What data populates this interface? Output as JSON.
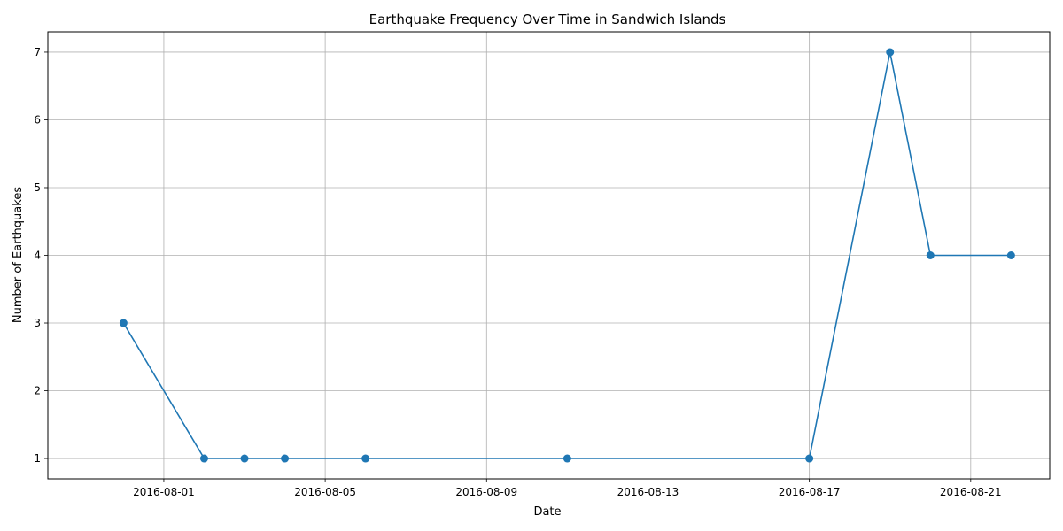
{
  "chart_data": {
    "type": "line",
    "title": "Earthquake Frequency Over Time in Sandwich Islands",
    "xlabel": "Date",
    "ylabel": "Number of Earthquakes",
    "x_ticks": [
      "2016-08-01",
      "2016-08-05",
      "2016-08-09",
      "2016-08-13",
      "2016-08-17",
      "2016-08-21"
    ],
    "y_ticks": [
      1,
      2,
      3,
      4,
      5,
      6,
      7
    ],
    "xlim": [
      "2016-07-29T03:00",
      "2016-08-22T23:00"
    ],
    "ylim": [
      0.7,
      7.3
    ],
    "grid": true,
    "legend": "none",
    "series": [
      {
        "color": "#1f77b4",
        "marker": "circle",
        "points": [
          {
            "x": "2016-07-31",
            "y": 3
          },
          {
            "x": "2016-08-02",
            "y": 1
          },
          {
            "x": "2016-08-03",
            "y": 1
          },
          {
            "x": "2016-08-04",
            "y": 1
          },
          {
            "x": "2016-08-06",
            "y": 1
          },
          {
            "x": "2016-08-11",
            "y": 1
          },
          {
            "x": "2016-08-17",
            "y": 1
          },
          {
            "x": "2016-08-19",
            "y": 7
          },
          {
            "x": "2016-08-20",
            "y": 4
          },
          {
            "x": "2016-08-22",
            "y": 4
          }
        ]
      }
    ]
  }
}
